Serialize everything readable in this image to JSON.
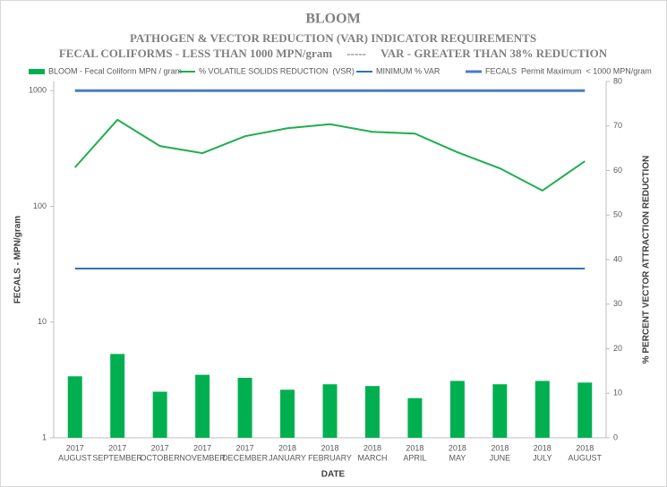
{
  "chart_data": {
    "type": "bar",
    "title": "BLOOM",
    "subtitle": "PATHOGEN & VECTOR REDUCTION (VAR) INDICATOR REQUIREMENTS",
    "subtitle2": "FECAL COLIFORMS - LESS THAN 1000 MPN/gram     -----     VAR - GREATER THAN 38% REDUCTION",
    "xlabel": "DATE",
    "ylabel": "FECALS - MPN/gram",
    "y2label": "% PERCENT VECTOR ATTRACTION REDUCTION",
    "categories": [
      [
        "2017",
        "AUGUST"
      ],
      [
        "2017",
        "SEPTEMBER"
      ],
      [
        "2017",
        "OCTOBER"
      ],
      [
        "2017",
        "NOVEMBER"
      ],
      [
        "2017",
        "DECEMBER"
      ],
      [
        "2018",
        "JANUARY"
      ],
      [
        "2018",
        "FEBRUARY"
      ],
      [
        "2018",
        "MARCH"
      ],
      [
        "2018",
        "APRIL"
      ],
      [
        "2018",
        "MAY"
      ],
      [
        "2018",
        "JUNE"
      ],
      [
        "2018",
        "JULY"
      ],
      [
        "2018",
        "AUGUST"
      ]
    ],
    "series": [
      {
        "name": "BLOOM - Fecal Coliform MPN / gram",
        "color": "#00b050",
        "kind": "bar",
        "values": [
          3.4,
          5.3,
          2.5,
          3.5,
          3.3,
          2.6,
          2.9,
          2.8,
          2.2,
          3.1,
          2.9,
          3.1,
          3.0
        ]
      },
      {
        "name": "% VOLATILE SOLIDS REDUCTION  (VSR)",
        "color": "#1fae4e",
        "kind": "line",
        "axis": "y2",
        "values": [
          60.7,
          71.4,
          65.5,
          63.9,
          67.7,
          69.5,
          70.4,
          68.7,
          68.3,
          64.1,
          60.5,
          55.5,
          62.1
        ]
      },
      {
        "name": "MINIMUM % VAR",
        "color": "#2e75b6",
        "kind": "line",
        "axis": "y2",
        "values": [
          38,
          38,
          38,
          38,
          38,
          38,
          38,
          38,
          38,
          38,
          38,
          38,
          38
        ]
      },
      {
        "name": "FECALS  Permit Maximum  < 1000 MPN/gram",
        "color": "#4a7cc4",
        "kind": "line",
        "values": [
          1000,
          1000,
          1000,
          1000,
          1000,
          1000,
          1000,
          1000,
          1000,
          1000,
          1000,
          1000,
          1000
        ]
      }
    ],
    "log_y": true,
    "ylim": [
      1,
      1200
    ],
    "yticks": [
      1,
      10,
      100,
      1000
    ],
    "y2lim": [
      0,
      80
    ],
    "y2ticks": [
      0,
      10,
      20,
      30,
      40,
      50,
      60,
      70,
      80
    ],
    "legend": "top"
  }
}
